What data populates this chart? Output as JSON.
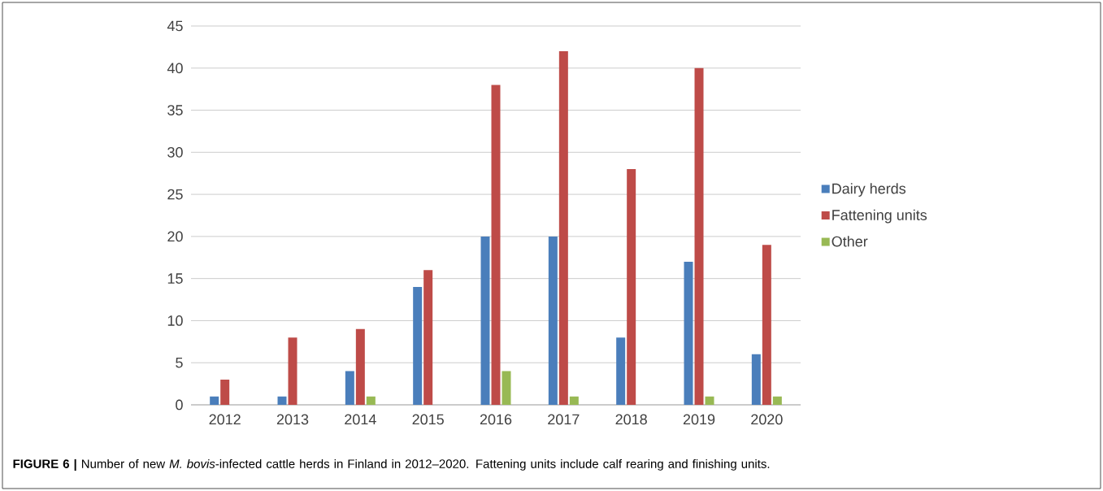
{
  "chart_data": {
    "type": "bar",
    "categories": [
      "2012",
      "2013",
      "2014",
      "2015",
      "2016",
      "2017",
      "2018",
      "2019",
      "2020"
    ],
    "series": [
      {
        "name": "Dairy herds",
        "color": "#4a7ebb",
        "values": [
          1,
          1,
          4,
          14,
          20,
          20,
          8,
          17,
          6
        ]
      },
      {
        "name": "Fattening units",
        "color": "#be4b48",
        "values": [
          3,
          8,
          9,
          16,
          38,
          42,
          28,
          40,
          19
        ]
      },
      {
        "name": "Other",
        "color": "#98b954",
        "values": [
          0,
          0,
          1,
          0,
          4,
          1,
          0,
          1,
          1
        ]
      }
    ],
    "ylim": [
      0,
      45
    ],
    "yticks": [
      0,
      5,
      10,
      15,
      20,
      25,
      30,
      35,
      40,
      45
    ],
    "grid": "y",
    "legend": "right",
    "annotations": [
      "**FIGURE 6 |** Number of new *M. bovis*-infected cattle herds in Finland in 2012–2020. Fattening units include calf rearing and finishing units."
    ]
  }
}
